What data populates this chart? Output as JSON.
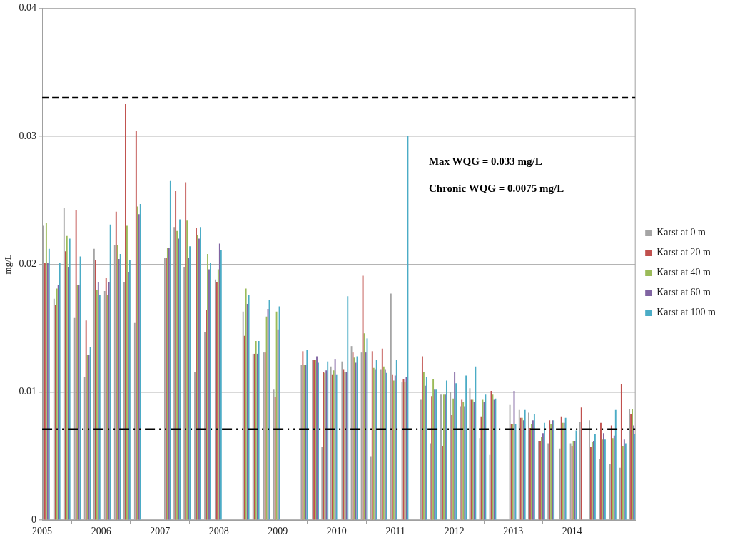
{
  "chart_data": {
    "type": "bar",
    "ylabel": "mg/L",
    "xlim": [
      2005,
      2015.07
    ],
    "xticks": [
      2005,
      2006,
      2007,
      2008,
      2009,
      2010,
      2011,
      2012,
      2013,
      2014
    ],
    "ylim": [
      0,
      0.04
    ],
    "yticks": [
      0,
      0.01,
      0.02,
      0.03,
      0.04
    ],
    "grid": "y",
    "legend": "right",
    "x": [
      2005.07,
      2005.25,
      2005.42,
      2005.6,
      2005.77,
      2005.93,
      2006.11,
      2006.28,
      2006.44,
      2006.62,
      2007.13,
      2007.29,
      2007.46,
      2007.64,
      2007.81,
      2007.99,
      2008.46,
      2008.63,
      2008.81,
      2008.98,
      2009.45,
      2009.64,
      2009.8,
      2009.95,
      2010.14,
      2010.3,
      2010.47,
      2010.63,
      2010.8,
      2010.97,
      2011.16,
      2011.48,
      2011.64,
      2011.82,
      2011.98,
      2012.15,
      2012.31,
      2012.48,
      2012.65,
      2012.99,
      2013.15,
      2013.31,
      2013.48,
      2013.64,
      2013.84,
      2014.02,
      2014.18,
      2014.34,
      2014.51,
      2014.69,
      2014.86,
      2015.02
    ],
    "series": [
      {
        "name": "Karst at 0 m",
        "color": "#a5a5a5",
        "values": [
          0.023,
          0.0173,
          0.0244,
          0.0158,
          0.0112,
          0.0212,
          0.0179,
          0.0215,
          0.0186,
          0.0154,
          0.0205,
          0.0229,
          0.0198,
          0.0116,
          0.0147,
          0.0188,
          0.0163,
          0.013,
          0.0131,
          0.0102,
          0.0121,
          0.0125,
          0.0057,
          0.012,
          0.0124,
          0.0136,
          0.0131,
          0.005,
          0.0118,
          0.0177,
          0.0108,
          0.0094,
          0.006,
          0.0098,
          0.01,
          0.0089,
          0.0103,
          0.0064,
          0.0051,
          0.009,
          0.0086,
          0.0084,
          0.0062,
          0.006,
          0.0056,
          0.006,
          0.0077,
          0.0078,
          0.0048,
          0.0044,
          0.0041,
          0.0087
        ]
      },
      {
        "name": "Karst at 20 m",
        "color": "#c0504d",
        "values": [
          0.0201,
          0.0168,
          0.021,
          0.0242,
          0.0156,
          0.0203,
          0.0189,
          0.0241,
          0.0325,
          0.0304,
          0.0205,
          0.0257,
          0.0264,
          0.0228,
          0.0164,
          0.0186,
          0.0144,
          0.013,
          0.0131,
          0.0096,
          0.0132,
          0.0125,
          0.0116,
          0.0114,
          0.0118,
          0.0131,
          0.0191,
          0.0132,
          0.0134,
          0.0114,
          0.011,
          0.0128,
          0.0097,
          0.0058,
          0.0082,
          0.0094,
          0.0094,
          0.0081,
          0.0101,
          0.0075,
          0.008,
          0.0072,
          0.0062,
          0.0078,
          0.0081,
          0.0058,
          0.0088,
          0.0057,
          0.0076,
          0.0074,
          0.0106,
          0.0083
        ]
      },
      {
        "name": "Karst at 40 m",
        "color": "#9bbb59",
        "values": [
          0.0232,
          0.0181,
          0.0222,
          0.0184,
          0.0129,
          0.018,
          0.0176,
          0.0215,
          0.023,
          0.0245,
          0.0213,
          0.0226,
          0.0234,
          0.0223,
          0.0208,
          0.0196,
          0.0181,
          0.014,
          0.0159,
          0.0163,
          0.0121,
          0.0125,
          0.0115,
          0.0117,
          0.0116,
          0.0127,
          0.0146,
          0.0119,
          0.012,
          0.0109,
          0.0108,
          0.0116,
          0.011,
          0.0098,
          0.0095,
          0.0092,
          0.0094,
          0.0094,
          0.0098,
          0.0075,
          0.008,
          0.0075,
          0.0065,
          0.0075,
          0.0076,
          0.0062,
          null,
          0.0061,
          0.0063,
          0.0064,
          0.0058,
          0.0087
        ]
      },
      {
        "name": "Karst at 60 m",
        "color": "#8064a2",
        "values": [
          0.0201,
          0.0184,
          0.0198,
          0.0184,
          0.0129,
          0.0186,
          0.0186,
          0.0204,
          0.0194,
          0.0239,
          0.0213,
          0.022,
          0.0205,
          0.022,
          0.0196,
          0.0216,
          0.0169,
          0.013,
          0.0165,
          0.0149,
          0.0121,
          0.0128,
          0.0117,
          0.0126,
          0.0116,
          0.0123,
          0.0131,
          0.0118,
          0.0118,
          0.0113,
          0.0112,
          0.0105,
          0.0102,
          0.0098,
          0.0116,
          0.0089,
          0.0092,
          0.0092,
          0.0094,
          0.0101,
          0.0078,
          0.0078,
          0.0068,
          0.0078,
          0.0076,
          0.0062,
          null,
          0.0062,
          0.0068,
          0.0066,
          0.0063,
          0.0074
        ]
      },
      {
        "name": "Karst at 100 m",
        "color": "#4bacc6",
        "values": [
          0.0212,
          0.0201,
          0.022,
          0.0206,
          0.0135,
          0.0176,
          0.0231,
          0.0208,
          0.0203,
          0.0247,
          0.0265,
          0.0235,
          0.0214,
          0.0229,
          0.0201,
          0.0211,
          0.0176,
          0.014,
          0.0172,
          0.0167,
          0.0133,
          0.0123,
          0.0124,
          0.0114,
          0.0175,
          0.0128,
          0.0142,
          0.0125,
          0.0115,
          0.0125,
          0.03,
          0.0112,
          0.0102,
          0.0109,
          0.0107,
          0.0113,
          0.012,
          0.0098,
          0.0095,
          0.0075,
          0.0086,
          0.0083,
          0.0076,
          0.0078,
          0.008,
          0.007,
          null,
          0.0067,
          0.0063,
          0.0086,
          0.006,
          0.0067
        ]
      }
    ],
    "ref_lines": [
      {
        "axis": "y",
        "value": 0.033,
        "color": "#000000",
        "line_style": "dashed"
      },
      {
        "axis": "y",
        "value": 0.0071,
        "color": "#000000",
        "line_style": "dashdot"
      }
    ],
    "annotations": [
      "Max WQG = 0.033 mg/L",
      "Chronic WQG = 0.0075 mg/L"
    ]
  }
}
